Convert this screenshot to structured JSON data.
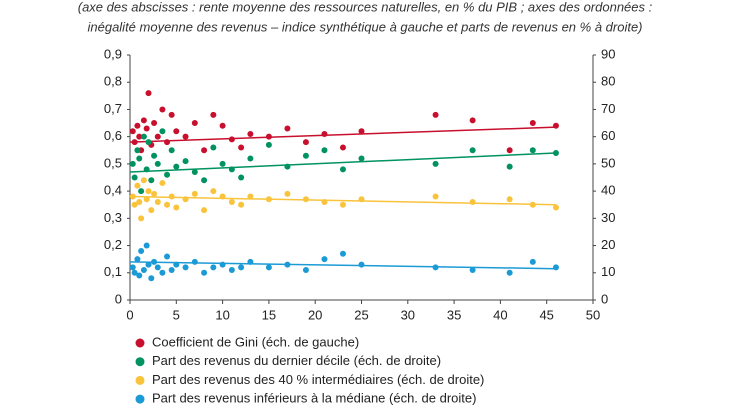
{
  "chart_data": {
    "type": "scatter",
    "subtitle": [
      "(axe des abscisses : rente moyenne des ressources naturelles, en % du PIB ; axes des ordonnées :",
      "inégalité moyenne des revenus – indice synthétique à gauche et parts de revenus en % à droite)"
    ],
    "xlim": [
      0,
      50
    ],
    "xticks": [
      0,
      5,
      10,
      15,
      20,
      25,
      30,
      35,
      40,
      45,
      50
    ],
    "ylim": [
      0,
      0.9
    ],
    "yticks": [
      0,
      {
        "value": 0.1,
        "label": "0,1"
      },
      {
        "value": 0.2,
        "label": "0,2"
      },
      {
        "value": 0.3,
        "label": "0,3"
      },
      {
        "value": 0.4,
        "label": "0,4"
      },
      {
        "value": 0.5,
        "label": "0,5"
      },
      {
        "value": 0.6,
        "label": "0,6"
      },
      {
        "value": 0.7,
        "label": "0,7"
      },
      {
        "value": 0.8,
        "label": "0,8"
      },
      {
        "value": 0.9,
        "label": "0,9"
      }
    ],
    "y2lim": [
      0,
      90
    ],
    "y2ticks": [
      0,
      10,
      20,
      30,
      40,
      50,
      60,
      70,
      80,
      90
    ],
    "series": [
      {
        "name": "Coefficient de Gini (éch. de gauche)",
        "color": "#c8102e",
        "x": [
          0.3,
          0.5,
          0.8,
          1,
          1.2,
          1.5,
          1.8,
          2,
          2.3,
          2.6,
          3,
          3.5,
          4,
          4.5,
          5,
          6,
          7,
          8,
          9,
          10,
          11,
          12,
          13,
          15,
          17,
          19,
          21,
          23,
          25,
          33,
          37,
          41,
          43.5,
          46
        ],
        "values": [
          0.62,
          0.58,
          0.64,
          0.6,
          0.55,
          0.66,
          0.63,
          0.76,
          0.57,
          0.65,
          0.6,
          0.7,
          0.58,
          0.68,
          0.62,
          0.6,
          0.65,
          0.55,
          0.68,
          0.64,
          0.59,
          0.56,
          0.61,
          0.6,
          0.63,
          0.58,
          0.61,
          0.56,
          0.62,
          0.68,
          0.66,
          0.55,
          0.65,
          0.64
        ],
        "trend": {
          "x": [
            0,
            46
          ],
          "values": [
            0.58,
            0.635
          ]
        }
      },
      {
        "name": "Part des revenus du dernier décile (éch. de droite)",
        "color": "#00935f",
        "axis": "y2",
        "x": [
          0.3,
          0.5,
          0.8,
          1,
          1.2,
          1.5,
          1.8,
          2,
          2.3,
          2.6,
          3,
          3.5,
          4,
          4.5,
          5,
          6,
          7,
          8,
          9,
          10,
          11,
          12,
          13,
          15,
          17,
          19,
          21,
          23,
          25,
          33,
          37,
          41,
          43.5,
          46
        ],
        "values": [
          50,
          45,
          55,
          52,
          40,
          60,
          48,
          58,
          44,
          53,
          50,
          62,
          46,
          55,
          49,
          51,
          47,
          44,
          56,
          50,
          48,
          45,
          52,
          57,
          49,
          53,
          55,
          48,
          52,
          50,
          55,
          49,
          55,
          54
        ],
        "trend": {
          "x": [
            0,
            46
          ],
          "values": [
            47,
            54
          ]
        }
      },
      {
        "name": "Part des revenus des 40 % intermédiaires (éch. de droite)",
        "color": "#f9c33c",
        "axis": "y2",
        "x": [
          0.3,
          0.5,
          0.8,
          1,
          1.2,
          1.5,
          1.8,
          2,
          2.3,
          2.6,
          3,
          3.5,
          4,
          4.5,
          5,
          6,
          7,
          8,
          9,
          10,
          11,
          12,
          13,
          15,
          17,
          19,
          21,
          23,
          25,
          33,
          37,
          41,
          43.5,
          46
        ],
        "values": [
          38,
          35,
          42,
          36,
          30,
          44,
          37,
          40,
          33,
          39,
          36,
          43,
          35,
          38,
          34,
          37,
          39,
          33,
          40,
          38,
          36,
          35,
          38,
          37,
          39,
          37,
          36,
          35,
          37,
          38,
          36,
          37,
          35,
          34
        ],
        "trend": {
          "x": [
            0,
            46
          ],
          "values": [
            38,
            35
          ]
        }
      },
      {
        "name": "Part des revenus inférieurs à la médiane (éch. de droite)",
        "color": "#1b9ad6",
        "axis": "y2",
        "x": [
          0.3,
          0.5,
          0.8,
          1,
          1.2,
          1.5,
          1.8,
          2,
          2.3,
          2.6,
          3,
          3.5,
          4,
          4.5,
          5,
          6,
          7,
          8,
          9,
          10,
          11,
          12,
          13,
          15,
          17,
          19,
          21,
          23,
          25,
          33,
          37,
          41,
          43.5,
          46
        ],
        "values": [
          12,
          10,
          15,
          9,
          18,
          11,
          20,
          13,
          8,
          14,
          12,
          10,
          16,
          11,
          13,
          12,
          14,
          10,
          12,
          13,
          11,
          12,
          14,
          12,
          13,
          11,
          15,
          17,
          13,
          12,
          11,
          10,
          14,
          12
        ],
        "trend": {
          "x": [
            0,
            46
          ],
          "values": [
            14,
            11.5
          ]
        }
      }
    ]
  }
}
